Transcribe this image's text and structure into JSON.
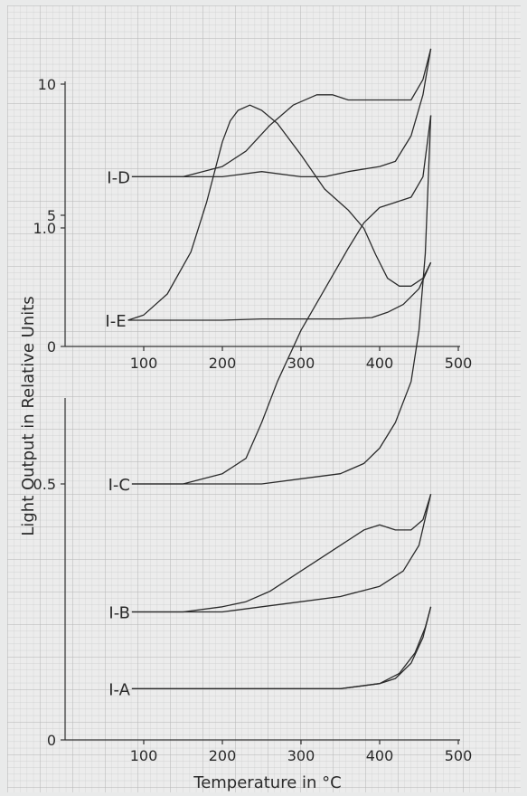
{
  "chart_data": [
    {
      "type": "line",
      "xlabel": "Temperature in °C",
      "ylabel": "Light Output in Relative Units",
      "xlim": [
        0,
        500
      ],
      "ylim": [
        0,
        10
      ],
      "x_ticks": [
        100,
        200,
        300,
        400,
        500
      ],
      "y_ticks": [
        0,
        5,
        10
      ],
      "series": [
        {
          "name": "I-E",
          "branches": [
            {
              "x": [
                80,
                100,
                130,
                160,
                180,
                200,
                210,
                220,
                235,
                250,
                270,
                300,
                330,
                360,
                380,
                395,
                410,
                425,
                440,
                455,
                465
              ],
              "y": [
                1.0,
                1.2,
                2.0,
                3.6,
                5.5,
                7.8,
                8.6,
                9.0,
                9.2,
                9.0,
                8.5,
                7.3,
                6.0,
                5.2,
                4.5,
                3.5,
                2.6,
                2.3,
                2.3,
                2.6,
                3.2
              ]
            },
            {
              "x": [
                80,
                150,
                200,
                250,
                300,
                350,
                390,
                410,
                430,
                450,
                465
              ],
              "y": [
                1.0,
                1.0,
                1.0,
                1.05,
                1.05,
                1.05,
                1.1,
                1.3,
                1.6,
                2.2,
                3.2
              ]
            }
          ]
        }
      ]
    },
    {
      "type": "line",
      "xlim": [
        0,
        500
      ],
      "ylim": [
        0,
        1.3
      ],
      "x_ticks": [
        100,
        200,
        300,
        400,
        500
      ],
      "y_ticks": [
        0,
        0.5,
        1.0
      ],
      "y_tick_labels": [
        "0",
        "0.5",
        "1.0"
      ],
      "series": [
        {
          "name": "I-D",
          "branches": [
            {
              "x": [
                85,
                150,
                200,
                230,
                260,
                290,
                320,
                340,
                360,
                390,
                420,
                440,
                455,
                465
              ],
              "y": [
                1.1,
                1.1,
                1.12,
                1.15,
                1.2,
                1.24,
                1.26,
                1.26,
                1.25,
                1.25,
                1.25,
                1.25,
                1.29,
                1.35
              ]
            },
            {
              "x": [
                85,
                150,
                200,
                250,
                300,
                330,
                360,
                400,
                420,
                440,
                455,
                465
              ],
              "y": [
                1.1,
                1.1,
                1.1,
                1.11,
                1.1,
                1.1,
                1.11,
                1.12,
                1.13,
                1.18,
                1.26,
                1.35
              ]
            }
          ]
        },
        {
          "name": "I-C",
          "branches": [
            {
              "x": [
                85,
                150,
                200,
                230,
                250,
                270,
                300,
                330,
                360,
                380,
                400,
                420,
                440,
                455,
                465
              ],
              "y": [
                0.5,
                0.5,
                0.52,
                0.55,
                0.62,
                0.7,
                0.8,
                0.88,
                0.96,
                1.01,
                1.04,
                1.05,
                1.06,
                1.1,
                1.22
              ]
            },
            {
              "x": [
                85,
                150,
                200,
                250,
                300,
                350,
                380,
                400,
                420,
                440,
                450,
                458,
                465
              ],
              "y": [
                0.5,
                0.5,
                0.5,
                0.5,
                0.51,
                0.52,
                0.54,
                0.57,
                0.62,
                0.7,
                0.8,
                0.95,
                1.22
              ]
            }
          ]
        },
        {
          "name": "I-B",
          "branches": [
            {
              "x": [
                85,
                150,
                200,
                230,
                260,
                290,
                320,
                350,
                380,
                400,
                420,
                440,
                455,
                465
              ],
              "y": [
                0.25,
                0.25,
                0.26,
                0.27,
                0.29,
                0.32,
                0.35,
                0.38,
                0.41,
                0.42,
                0.41,
                0.41,
                0.43,
                0.48
              ]
            },
            {
              "x": [
                85,
                150,
                200,
                250,
                300,
                350,
                400,
                430,
                450,
                465
              ],
              "y": [
                0.25,
                0.25,
                0.25,
                0.26,
                0.27,
                0.28,
                0.3,
                0.33,
                0.38,
                0.48
              ]
            }
          ]
        },
        {
          "name": "I-A",
          "branches": [
            {
              "x": [
                85,
                150,
                200,
                250,
                300,
                350,
                400,
                420,
                440,
                455,
                465
              ],
              "y": [
                0.1,
                0.1,
                0.1,
                0.1,
                0.1,
                0.1,
                0.11,
                0.12,
                0.15,
                0.2,
                0.26
              ]
            },
            {
              "x": [
                85,
                150,
                200,
                250,
                300,
                350,
                400,
                425,
                445,
                458,
                465
              ],
              "y": [
                0.1,
                0.1,
                0.1,
                0.1,
                0.1,
                0.1,
                0.11,
                0.13,
                0.17,
                0.22,
                0.26
              ]
            }
          ]
        }
      ]
    }
  ]
}
